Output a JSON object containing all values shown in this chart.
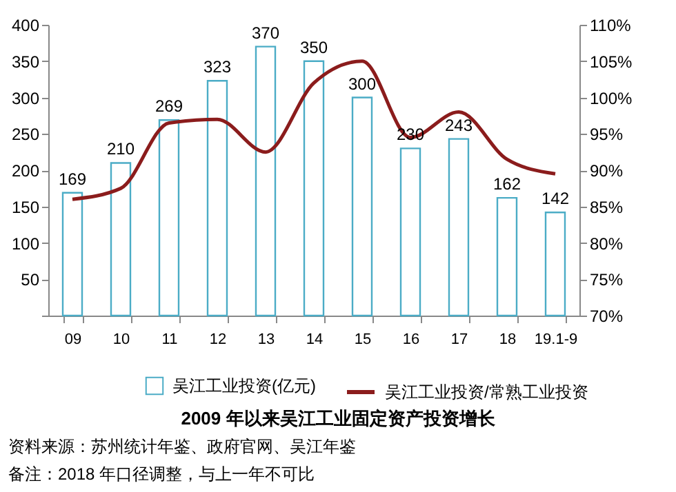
{
  "chart_data": {
    "type": "bar",
    "title": "2009 年以来吴江工业固定资产投资增长",
    "categories": [
      "09",
      "10",
      "11",
      "12",
      "13",
      "14",
      "15",
      "16",
      "17",
      "18",
      "19.1-9"
    ],
    "series": [
      {
        "name": "吴江工业投资(亿元)",
        "color": "#4bacc6",
        "values": [
          169,
          210,
          269,
          323,
          370,
          350,
          300,
          230,
          243,
          162,
          142
        ],
        "value_labels": [
          "169",
          "210",
          "269",
          "323",
          "370",
          "350",
          "300",
          "230",
          "243",
          "162",
          "142"
        ]
      },
      {
        "name": "吴江工业投资/常熟工业投资",
        "type": "line",
        "axis": "y2",
        "color": "#8b1c1c",
        "values": [
          86,
          87.5,
          96.5,
          97,
          92.5,
          102,
          105,
          94.5,
          98,
          91.5,
          89.5
        ]
      }
    ],
    "ylim": [
      0,
      400
    ],
    "yticks": [
      {
        "value": 0,
        "label": null
      },
      50,
      100,
      150,
      200,
      250,
      300,
      350,
      400
    ],
    "y2lim": [
      70,
      110
    ],
    "y2ticks": [
      {
        "value": 70,
        "label": "70%"
      },
      {
        "value": 75,
        "label": "75%"
      },
      {
        "value": 80,
        "label": "80%"
      },
      {
        "value": 85,
        "label": "85%"
      },
      {
        "value": 90,
        "label": "90%"
      },
      {
        "value": 95,
        "label": "95%"
      },
      {
        "value": 100,
        "label": "100%"
      },
      {
        "value": 105,
        "label": "105%"
      },
      {
        "value": 110,
        "label": "110%"
      }
    ],
    "grid": false,
    "legend": "bottom",
    "marker": "none",
    "line_style": "solid",
    "annotations": [
      "资料来源：苏州统计年鉴、政府官网、吴江年鉴",
      "备注：2018 年口径调整，与上一年不可比"
    ]
  }
}
